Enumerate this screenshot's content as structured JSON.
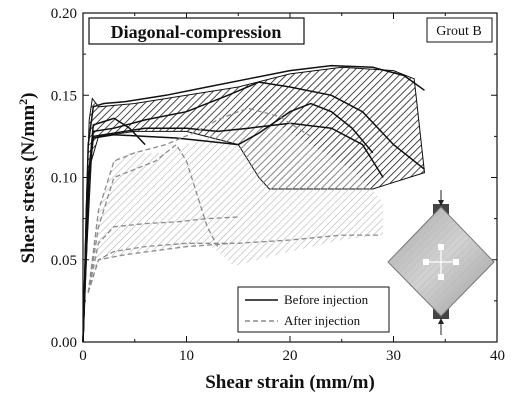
{
  "chart_data": {
    "type": "line",
    "title": "Diagonal-compression",
    "annotation": "Grout B",
    "xlabel": "Shear strain (mm/m)",
    "ylabel": "Shear stress (N/mm²)",
    "xlim": [
      0,
      40
    ],
    "ylim": [
      0,
      0.2
    ],
    "xticks": [
      "0",
      "10",
      "20",
      "30",
      "40"
    ],
    "yticks": [
      "0.00",
      "0.05",
      "0.10",
      "0.15",
      "0.20"
    ],
    "grid": false,
    "legend_position": "bottom-right",
    "legend": [
      {
        "label": "Before injection",
        "style": "solid",
        "color": "#111111"
      },
      {
        "label": "After injection",
        "style": "dashed",
        "color": "#8c8c8c"
      }
    ],
    "envelopes": [
      {
        "group": "Before injection",
        "fill": "dark hatch",
        "upper": [
          [
            0,
            0
          ],
          [
            0.3,
            0.08
          ],
          [
            0.6,
            0.135
          ],
          [
            0.9,
            0.148
          ],
          [
            1.5,
            0.143
          ],
          [
            5,
            0.145
          ],
          [
            10,
            0.15
          ],
          [
            15,
            0.155
          ],
          [
            20,
            0.163
          ],
          [
            25,
            0.167
          ],
          [
            30,
            0.165
          ],
          [
            32,
            0.16
          ]
        ],
        "lower": [
          [
            0.4,
            0.06
          ],
          [
            0.8,
            0.11
          ],
          [
            1.5,
            0.125
          ],
          [
            5,
            0.128
          ],
          [
            10,
            0.128
          ],
          [
            15,
            0.12
          ],
          [
            17,
            0.1
          ],
          [
            18,
            0.093
          ],
          [
            22,
            0.093
          ],
          [
            28,
            0.093
          ],
          [
            33,
            0.103
          ]
        ]
      },
      {
        "group": "After injection",
        "fill": "light hatch",
        "upper": [
          [
            0.5,
            0.03
          ],
          [
            1.5,
            0.08
          ],
          [
            3,
            0.11
          ],
          [
            4,
            0.115
          ],
          [
            8,
            0.115
          ],
          [
            12,
            0.125
          ],
          [
            16,
            0.135
          ],
          [
            18,
            0.135
          ],
          [
            22,
            0.12
          ],
          [
            26,
            0.105
          ],
          [
            29,
            0.085
          ]
        ],
        "lower": [
          [
            0.5,
            0.03
          ],
          [
            1.5,
            0.05
          ],
          [
            4,
            0.053
          ],
          [
            10,
            0.058
          ],
          [
            12,
            0.06
          ],
          [
            14,
            0.05
          ],
          [
            14.5,
            0.046
          ],
          [
            20,
            0.055
          ],
          [
            25,
            0.062
          ],
          [
            29,
            0.065
          ]
        ]
      }
    ],
    "series": [
      {
        "name": "Before injection",
        "style": "solid",
        "x": [
          0,
          0.5,
          1,
          2,
          4,
          8,
          12,
          16,
          20,
          24,
          28,
          31,
          33
        ],
        "y": [
          0,
          0.12,
          0.143,
          0.145,
          0.146,
          0.15,
          0.155,
          0.16,
          0.165,
          0.168,
          0.167,
          0.162,
          0.153
        ]
      },
      {
        "name": "Before injection",
        "style": "solid",
        "x": [
          0,
          0.5,
          1,
          3,
          6,
          10,
          14,
          17,
          20,
          24,
          27,
          30,
          33
        ],
        "y": [
          0,
          0.1,
          0.128,
          0.13,
          0.135,
          0.14,
          0.15,
          0.158,
          0.155,
          0.15,
          0.14,
          0.12,
          0.105
        ]
      },
      {
        "name": "Before injection",
        "style": "solid",
        "x": [
          0,
          0.6,
          1,
          3,
          6,
          10,
          13,
          16,
          20,
          24,
          27,
          29
        ],
        "y": [
          0,
          0.1,
          0.125,
          0.127,
          0.13,
          0.13,
          0.128,
          0.13,
          0.133,
          0.13,
          0.12,
          0.1
        ]
      },
      {
        "name": "Before injection",
        "style": "solid",
        "x": [
          0,
          0.5,
          1,
          3,
          6,
          9,
          12,
          15,
          17,
          20,
          22,
          24,
          26,
          28
        ],
        "y": [
          0,
          0.1,
          0.124,
          0.126,
          0.125,
          0.124,
          0.122,
          0.12,
          0.127,
          0.14,
          0.145,
          0.14,
          0.13,
          0.115
        ]
      },
      {
        "name": "Before injection",
        "style": "solid",
        "x": [
          0,
          0.4,
          1,
          2,
          3,
          4.5,
          6
        ],
        "y": [
          0,
          0.09,
          0.132,
          0.134,
          0.136,
          0.13,
          0.12
        ]
      },
      {
        "name": "After injection",
        "style": "dashed",
        "x": [
          0.5,
          1.5,
          3,
          5,
          8,
          11,
          13,
          15,
          16,
          19,
          22
        ],
        "y": [
          0.03,
          0.08,
          0.11,
          0.115,
          0.12,
          0.128,
          0.135,
          0.14,
          0.142,
          0.137,
          0.125
        ]
      },
      {
        "name": "After injection",
        "style": "dashed",
        "x": [
          0.5,
          1.5,
          3,
          5,
          7,
          9,
          10,
          12,
          13
        ],
        "y": [
          0.03,
          0.07,
          0.1,
          0.105,
          0.11,
          0.12,
          0.11,
          0.07,
          0.058
        ]
      },
      {
        "name": "After injection",
        "style": "dashed",
        "x": [
          0.5,
          1.5,
          3,
          6,
          9,
          12,
          15
        ],
        "y": [
          0.03,
          0.06,
          0.07,
          0.072,
          0.073,
          0.075,
          0.076
        ]
      },
      {
        "name": "After injection",
        "style": "dashed",
        "x": [
          0.5,
          1.5,
          3,
          6,
          10,
          15,
          20,
          25,
          28.5
        ],
        "y": [
          0.03,
          0.05,
          0.055,
          0.058,
          0.06,
          0.06,
          0.062,
          0.065,
          0.065
        ]
      },
      {
        "name": "After injection",
        "style": "dashed",
        "x": [
          0.5,
          1.5,
          4,
          10,
          14.5
        ],
        "y": [
          0.03,
          0.05,
          0.053,
          0.058,
          0.06
        ]
      }
    ]
  }
}
